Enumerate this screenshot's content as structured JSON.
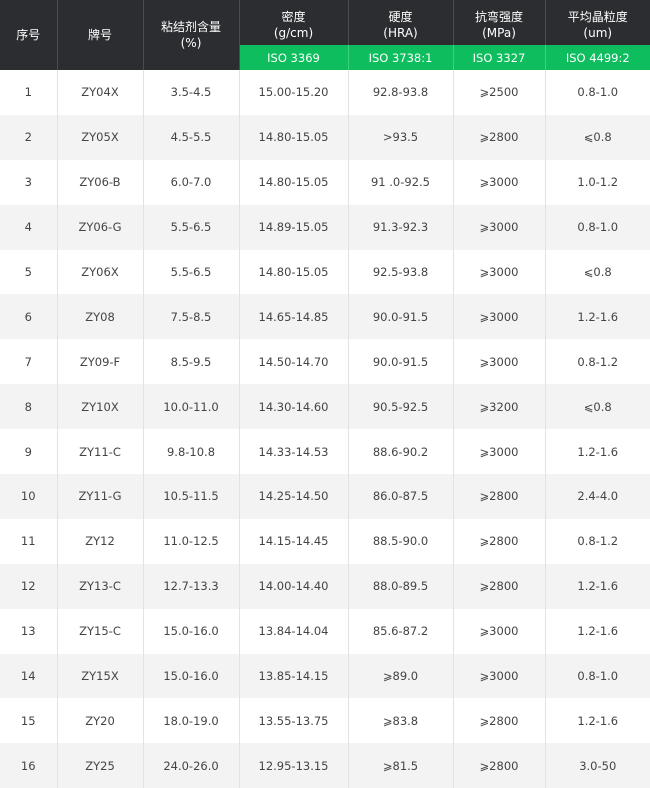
{
  "colors": {
    "header_bg": "#2b2d31",
    "iso_bg": "#0ebd5d",
    "alt_row": "#f3f3f3"
  },
  "headers": [
    {
      "title": "序号",
      "unit": ""
    },
    {
      "title": "牌号",
      "unit": ""
    },
    {
      "title": "粘结剂含量",
      "unit": "(%)"
    },
    {
      "title": "密度",
      "unit": "(g/cm)"
    },
    {
      "title": "硬度",
      "unit": "(HRA)"
    },
    {
      "title": "抗弯强度",
      "unit": "(MPa)"
    },
    {
      "title": "平均晶粒度",
      "unit": "(um)"
    }
  ],
  "iso": [
    "ISO 3369",
    "ISO 3738:1",
    "ISO 3327",
    "ISO 4499:2"
  ],
  "rows": [
    [
      "1",
      "ZY04X",
      "3.5-4.5",
      "15.00-15.20",
      "92.8-93.8",
      "⩾2500",
      "0.8-1.0"
    ],
    [
      "2",
      "ZY05X",
      "4.5-5.5",
      "14.80-15.05",
      ">93.5",
      "⩾2800",
      "⩽0.8"
    ],
    [
      "3",
      "ZY06-B",
      "6.0-7.0",
      "14.80-15.05",
      "91 .0-92.5",
      "⩾3000",
      "1.0-1.2"
    ],
    [
      "4",
      "ZY06-G",
      "5.5-6.5",
      "14.89-15.05",
      "91.3-92.3",
      "⩾3000",
      "0.8-1.0"
    ],
    [
      "5",
      "ZY06X",
      "5.5-6.5",
      "14.80-15.05",
      "92.5-93.8",
      "⩾3000",
      "⩽0.8"
    ],
    [
      "6",
      "ZY08",
      "7.5-8.5",
      "14.65-14.85",
      "90.0-91.5",
      "⩾3000",
      "1.2-1.6"
    ],
    [
      "7",
      "ZY09-F",
      "8.5-9.5",
      "14.50-14.70",
      "90.0-91.5",
      "⩾3000",
      "0.8-1.2"
    ],
    [
      "8",
      "ZY10X",
      "10.0-11.0",
      "14.30-14.60",
      "90.5-92.5",
      "⩾3200",
      "⩽0.8"
    ],
    [
      "9",
      "ZY11-C",
      "9.8-10.8",
      "14.33-14.53",
      "88.6-90.2",
      "⩾3000",
      "1.2-1.6"
    ],
    [
      "10",
      "ZY11-G",
      "10.5-11.5",
      "14.25-14.50",
      "86.0-87.5",
      "⩾2800",
      "2.4-4.0"
    ],
    [
      "11",
      "ZY12",
      "11.0-12.5",
      "14.15-14.45",
      "88.5-90.0",
      "⩾2800",
      "0.8-1.2"
    ],
    [
      "12",
      "ZY13-C",
      "12.7-13.3",
      "14.00-14.40",
      "88.0-89.5",
      "⩾2800",
      "1.2-1.6"
    ],
    [
      "13",
      "ZY15-C",
      "15.0-16.0",
      "13.84-14.04",
      "85.6-87.2",
      "⩾3000",
      "1.2-1.6"
    ],
    [
      "14",
      "ZY15X",
      "15.0-16.0",
      "13.85-14.15",
      "⩾89.0",
      "⩾3000",
      "0.8-1.0"
    ],
    [
      "15",
      "ZY20",
      "18.0-19.0",
      "13.55-13.75",
      "⩾83.8",
      "⩾2800",
      "1.2-1.6"
    ],
    [
      "16",
      "ZY25",
      "24.0-26.0",
      "12.95-13.15",
      "⩾81.5",
      "⩾2800",
      "3.0-50"
    ]
  ]
}
